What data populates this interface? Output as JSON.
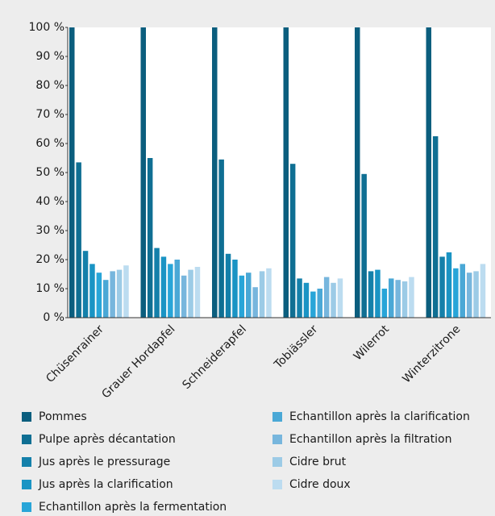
{
  "chart_data": {
    "type": "bar",
    "categories": [
      "Chüsenrainer",
      "Grauer Hordapfel",
      "Schneiderapfel",
      "Tobiässler",
      "Wilerrot",
      "Winterzitrone"
    ],
    "series": [
      {
        "name": "Pommes",
        "color": "#0b5e7e",
        "values": [
          100,
          100,
          100,
          100,
          100,
          100
        ]
      },
      {
        "name": "Pulpe après décantation",
        "color": "#0f6f93",
        "values": [
          53.5,
          55,
          54.5,
          53,
          49.5,
          62.5
        ]
      },
      {
        "name": "Jus après le pressurage",
        "color": "#1480aa",
        "values": [
          23,
          24,
          22,
          13.5,
          16,
          21
        ]
      },
      {
        "name": "Jus après la clarification",
        "color": "#1a94c4",
        "values": [
          18.5,
          21,
          20,
          12,
          16.5,
          22.5
        ]
      },
      {
        "name": "Echantillon après la fermentation",
        "color": "#28a5d8",
        "values": [
          15.5,
          18.5,
          14.5,
          9,
          10,
          17
        ]
      },
      {
        "name": "Echantillon après la clarification",
        "color": "#4aa8d6",
        "values": [
          13,
          20,
          15.5,
          10,
          13.5,
          18.5
        ]
      },
      {
        "name": "Echantillon après la filtration",
        "color": "#77b6dd",
        "values": [
          16,
          14.5,
          10.5,
          14,
          13,
          15.5
        ]
      },
      {
        "name": "Cidre brut",
        "color": "#9ccbe6",
        "values": [
          16.5,
          16.5,
          16,
          12,
          12.5,
          16
        ]
      },
      {
        "name": "Cidre doux",
        "color": "#bcdcf0",
        "values": [
          18,
          17.5,
          17,
          13.5,
          14,
          18.5
        ]
      }
    ],
    "ylim": [
      0,
      100
    ],
    "yticks": [
      {
        "value": 0,
        "label": "0 %"
      },
      {
        "value": 10,
        "label": "10 %"
      },
      {
        "value": 20,
        "label": "20 %"
      },
      {
        "value": 30,
        "label": "30 %"
      },
      {
        "value": 40,
        "label": "40 %"
      },
      {
        "value": 50,
        "label": "50 %"
      },
      {
        "value": 60,
        "label": "60 %"
      },
      {
        "value": 70,
        "label": "70 %"
      },
      {
        "value": 80,
        "label": "80 %"
      },
      {
        "value": 90,
        "label": "90 %"
      },
      {
        "value": 100,
        "label": "100 %"
      }
    ]
  }
}
